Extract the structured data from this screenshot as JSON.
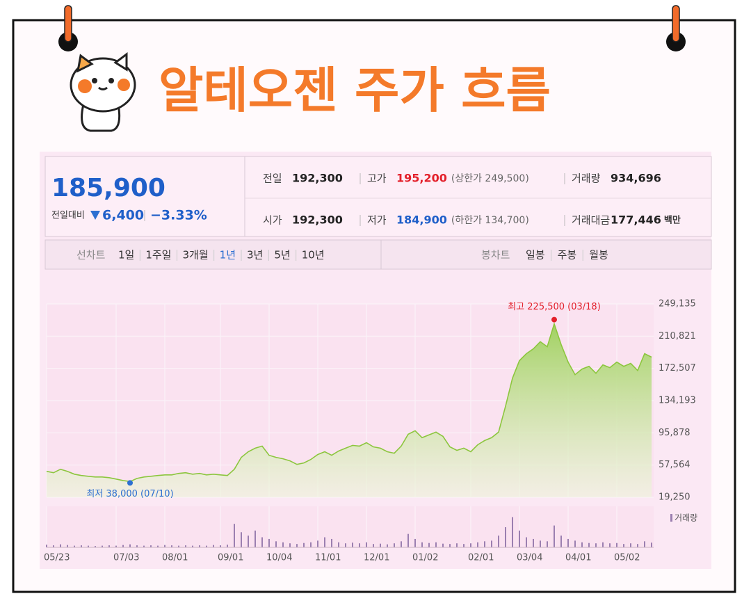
{
  "header": {
    "title": "알테오젠 주가 흐름"
  },
  "quote": {
    "price": "185,900",
    "change_label": "전일대비",
    "change": "6,400",
    "change_rate": "−3.33%",
    "items": [
      {
        "label": "전일",
        "value": "192,300"
      },
      {
        "label": "고가",
        "value": "195,200",
        "note": "(상한가 249,500)"
      },
      {
        "label": "거래량",
        "value": "934,696"
      },
      {
        "label": "시가",
        "value": "192,300"
      },
      {
        "label": "저가",
        "value": "184,900",
        "note": "(하한가 134,700)"
      },
      {
        "label": "거래대금",
        "value": "177,446",
        "unit": "백만"
      }
    ]
  },
  "tabs": {
    "line_label": "선차트",
    "line": [
      "1일",
      "1주일",
      "3개월",
      "1년",
      "3년",
      "5년",
      "10년"
    ],
    "candle_label": "봉차트",
    "candle": [
      "일봉",
      "주봉",
      "월봉"
    ]
  },
  "chart_data": {
    "type": "line",
    "color": "#8cc63e",
    "grid": true,
    "categories": [
      "05/23",
      null,
      null,
      null,
      null,
      null,
      null,
      null,
      null,
      null,
      "07/03",
      null,
      null,
      null,
      null,
      null,
      null,
      "08/01",
      null,
      null,
      null,
      null,
      null,
      null,
      null,
      "09/01",
      null,
      null,
      null,
      null,
      null,
      null,
      "10/04",
      null,
      null,
      null,
      null,
      null,
      null,
      "11/01",
      null,
      null,
      null,
      null,
      null,
      null,
      "12/01",
      null,
      null,
      null,
      null,
      null,
      null,
      "01/02",
      null,
      null,
      null,
      null,
      null,
      null,
      null,
      "02/01",
      null,
      null,
      null,
      null,
      null,
      null,
      "03/04",
      null,
      null,
      null,
      null,
      null,
      null,
      "04/01",
      null,
      null,
      null,
      null,
      null,
      null,
      "05/02",
      null,
      null,
      null,
      null,
      null
    ],
    "values": [
      50100,
      48400,
      52600,
      50100,
      46700,
      45100,
      44200,
      43400,
      43400,
      42600,
      40900,
      39200,
      38000,
      41700,
      43400,
      44200,
      45100,
      45900,
      45900,
      47600,
      48400,
      46700,
      47600,
      45900,
      46700,
      45900,
      45100,
      52600,
      66700,
      73400,
      77600,
      80100,
      69200,
      66700,
      65100,
      62600,
      58400,
      60100,
      64200,
      70100,
      73400,
      69200,
      74200,
      77600,
      80900,
      80100,
      84200,
      79200,
      77600,
      73400,
      71700,
      80100,
      94200,
      98400,
      90100,
      93400,
      96700,
      91700,
      79200,
      75100,
      77600,
      73400,
      81700,
      86700,
      90100,
      96700,
      127500,
      160900,
      181700,
      190000,
      195800,
      204200,
      198300,
      225500,
      200800,
      180000,
      165000,
      171700,
      175000,
      166700,
      176700,
      173400,
      180000,
      175000,
      178400,
      170000,
      190000,
      185900
    ],
    "ylim": [
      19250,
      249135
    ],
    "yticks": [
      {
        "value": 19250,
        "label": "19,250"
      },
      {
        "value": 57564,
        "label": "57,564"
      },
      {
        "value": 95878,
        "label": "95,878"
      },
      {
        "value": 134193,
        "label": "134,193"
      },
      {
        "value": 172507,
        "label": "172,507"
      },
      {
        "value": 210821,
        "label": "210,821"
      },
      {
        "value": 249135,
        "label": "249,135"
      }
    ],
    "annotations": [
      {
        "text": "최고 225,500 (03/18)",
        "value": 225500,
        "color": "#e3202b"
      },
      {
        "text": "최저 38,000 (07/10)",
        "value": 38000,
        "color": "#2c6fd1"
      }
    ],
    "volume": {
      "name": "거래량",
      "color": "#9b7fb0",
      "ylim": [
        0,
        12000000
      ],
      "values": [
        800000,
        600000,
        900000,
        700000,
        500000,
        600000,
        500000,
        400000,
        500000,
        600000,
        500000,
        700000,
        900000,
        600000,
        500000,
        600000,
        500000,
        700000,
        600000,
        500000,
        600000,
        500000,
        600000,
        500000,
        700000,
        600000,
        800000,
        7000000,
        4500000,
        3500000,
        5000000,
        3000000,
        2500000,
        1800000,
        1500000,
        1200000,
        1000000,
        1300000,
        1500000,
        2000000,
        3000000,
        2500000,
        1500000,
        1200000,
        1400000,
        1200000,
        1500000,
        1000000,
        1100000,
        900000,
        1200000,
        1800000,
        4000000,
        2500000,
        1500000,
        1300000,
        1500000,
        1100000,
        1000000,
        1200000,
        1000000,
        1200000,
        1500000,
        1800000,
        2000000,
        3500000,
        6000000,
        9000000,
        5000000,
        3000000,
        2500000,
        2000000,
        1800000,
        6500000,
        3500000,
        2500000,
        2000000,
        1500000,
        1300000,
        1200000,
        1500000,
        1200000,
        1300000,
        1000000,
        1200000,
        1000000,
        1800000,
        1400000
      ]
    }
  }
}
